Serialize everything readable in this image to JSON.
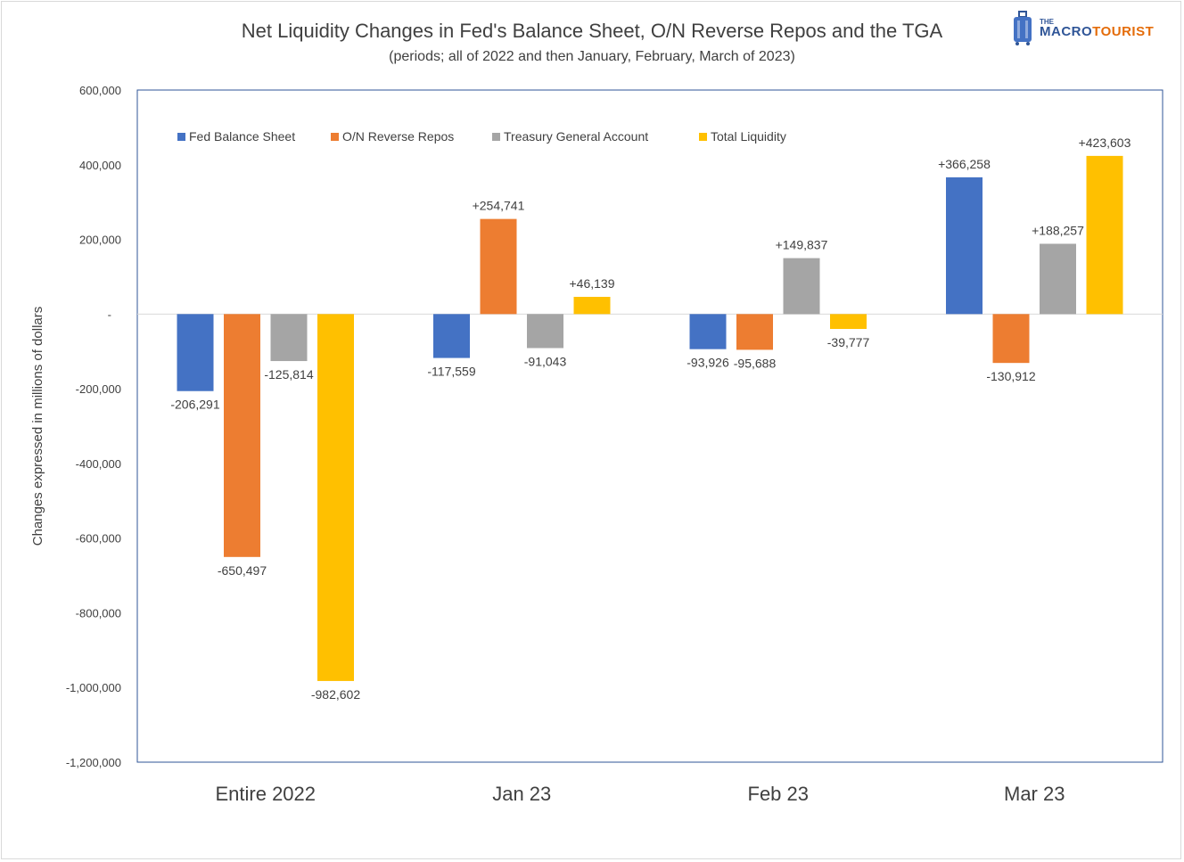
{
  "header": {
    "title": "Net Liquidity Changes in Fed's Balance Sheet, O/N Reverse Repos and the TGA",
    "subtitle": "(periods; all of 2022 and then January, February, March of 2023)"
  },
  "logo": {
    "small": "THE",
    "part1": "MACRO",
    "part2": "TOURIST"
  },
  "chart_data": {
    "type": "bar",
    "title": "Net Liquidity Changes in Fed's Balance Sheet, O/N Reverse Repos and the TGA",
    "subtitle": "(periods; all of 2022 and then January, February, March of 2023)",
    "ylabel": "Changes expressed in millions of dollars",
    "xlabel": "",
    "categories": [
      "Entire 2022",
      "Jan 23",
      "Feb 23",
      "Mar 23"
    ],
    "ylim": [
      -1200000,
      600000
    ],
    "yticks": [
      600000,
      400000,
      200000,
      0,
      -200000,
      -400000,
      -600000,
      -800000,
      -1000000,
      -1200000
    ],
    "ytick_labels": [
      "600,000",
      "400,000",
      "200,000",
      "-",
      "-200,000",
      "-400,000",
      "-600,000",
      "-800,000",
      "-1,000,000",
      "-1,200,000"
    ],
    "legend_position": "top-left",
    "grid": false,
    "series": [
      {
        "name": "Fed Balance Sheet",
        "color": "#4472c4",
        "values": [
          -206291,
          -117559,
          -93926,
          366258
        ],
        "labels": [
          "-206,291",
          "-117,559",
          "-93,926",
          "+366,258"
        ]
      },
      {
        "name": "O/N Reverse Repos",
        "color": "#ed7d31",
        "values": [
          -650497,
          254741,
          -95688,
          -130912
        ],
        "labels": [
          "-650,497",
          "+254,741",
          "-95,688",
          "-130,912"
        ]
      },
      {
        "name": "Treasury General Account",
        "color": "#a5a5a5",
        "values": [
          -125814,
          -91043,
          149837,
          188257
        ],
        "labels": [
          "-125,814",
          "-91,043",
          "+149,837",
          "+188,257"
        ]
      },
      {
        "name": "Total Liquidity",
        "color": "#ffc000",
        "values": [
          -982602,
          46139,
          -39777,
          423603
        ],
        "labels": [
          "-982,602",
          "+46,139",
          "-39,777",
          "+423,603"
        ]
      }
    ]
  }
}
